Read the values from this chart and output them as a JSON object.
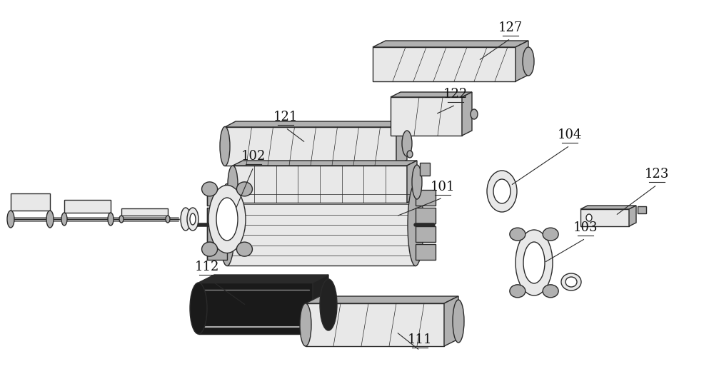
{
  "background_color": "#ffffff",
  "line_color": "#2a2a2a",
  "figsize": [
    10.0,
    5.45
  ],
  "dpi": 100,
  "lw_main": 1.0,
  "lw_thin": 0.6,
  "light_fill": "#e8e8e8",
  "mid_fill": "#b0b0b0",
  "dark_fill": "#1a1a1a",
  "white_fill": "#ffffff",
  "font_size": 13
}
